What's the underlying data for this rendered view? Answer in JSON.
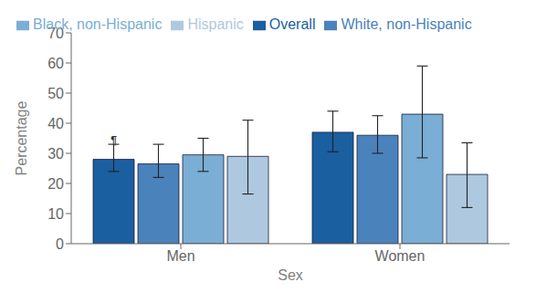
{
  "chart_data": {
    "type": "bar",
    "categories": [
      "Men",
      "Women"
    ],
    "series": [
      {
        "name": "Overall",
        "color": "#1a5fa0",
        "values": [
          28,
          37
        ],
        "error_low": [
          4,
          6.5
        ],
        "error_high": [
          5,
          7
        ]
      },
      {
        "name": "White, non-Hispanic",
        "color": "#4a82bc",
        "values": [
          26.5,
          36
        ],
        "error_low": [
          4.5,
          6
        ],
        "error_high": [
          6.5,
          6.5
        ]
      },
      {
        "name": "Black, non-Hispanic",
        "color": "#7aaed4",
        "values": [
          29.5,
          43
        ],
        "error_low": [
          5.5,
          14.5
        ],
        "error_high": [
          5.5,
          16
        ]
      },
      {
        "name": "Hispanic",
        "color": "#aec8e0",
        "values": [
          29,
          23
        ],
        "error_low": [
          12.5,
          11
        ],
        "error_high": [
          12,
          10.5
        ]
      }
    ],
    "xlabel": "Sex",
    "ylabel": "Percentage",
    "ylim": [
      0,
      70
    ],
    "yticks": [
      0,
      10,
      20,
      30,
      40,
      50,
      60,
      70
    ],
    "grid": false,
    "legend": "upper left",
    "annotations": [
      {
        "text": "¶",
        "category": "Men",
        "series": "Overall",
        "y": 33
      }
    ]
  }
}
